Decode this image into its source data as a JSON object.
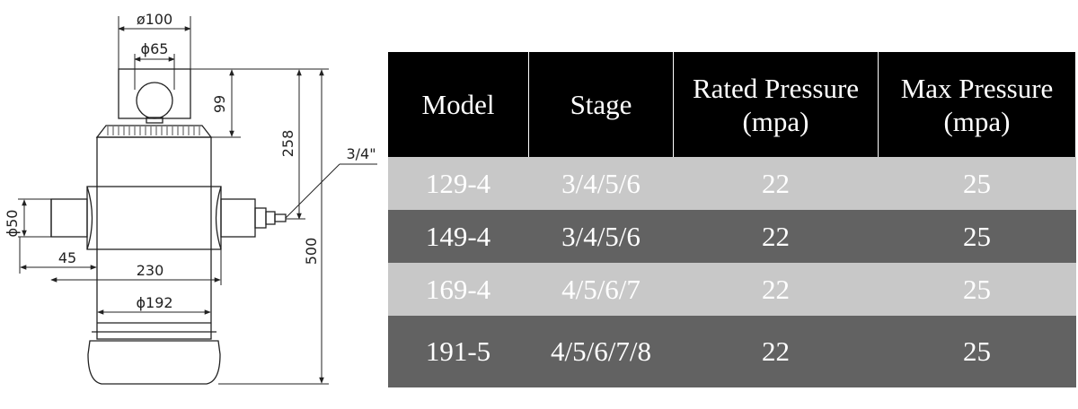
{
  "drawing": {
    "dims": {
      "top_diameter": "ø100",
      "ball_diameter": "ϕ65",
      "height_99": "99",
      "height_258": "258",
      "total_500": "500",
      "port_size": "3/4\"",
      "pipe_diameter": "ϕ50",
      "offset_45": "45",
      "width_230": "230",
      "body_diameter": "ϕ192"
    }
  },
  "table": {
    "headers": [
      "Model",
      "Stage",
      "Rated Pressure\n(mpa)",
      "Max Pressure\n(mpa)"
    ],
    "rows": [
      [
        "129-4",
        "3/4/5/6",
        "22",
        "25"
      ],
      [
        "149-4",
        "3/4/5/6",
        "22",
        "25"
      ],
      [
        "169-4",
        "4/5/6/7",
        "22",
        "25"
      ],
      [
        "191-5",
        "4/5/6/7/8",
        "22",
        "25"
      ]
    ]
  }
}
